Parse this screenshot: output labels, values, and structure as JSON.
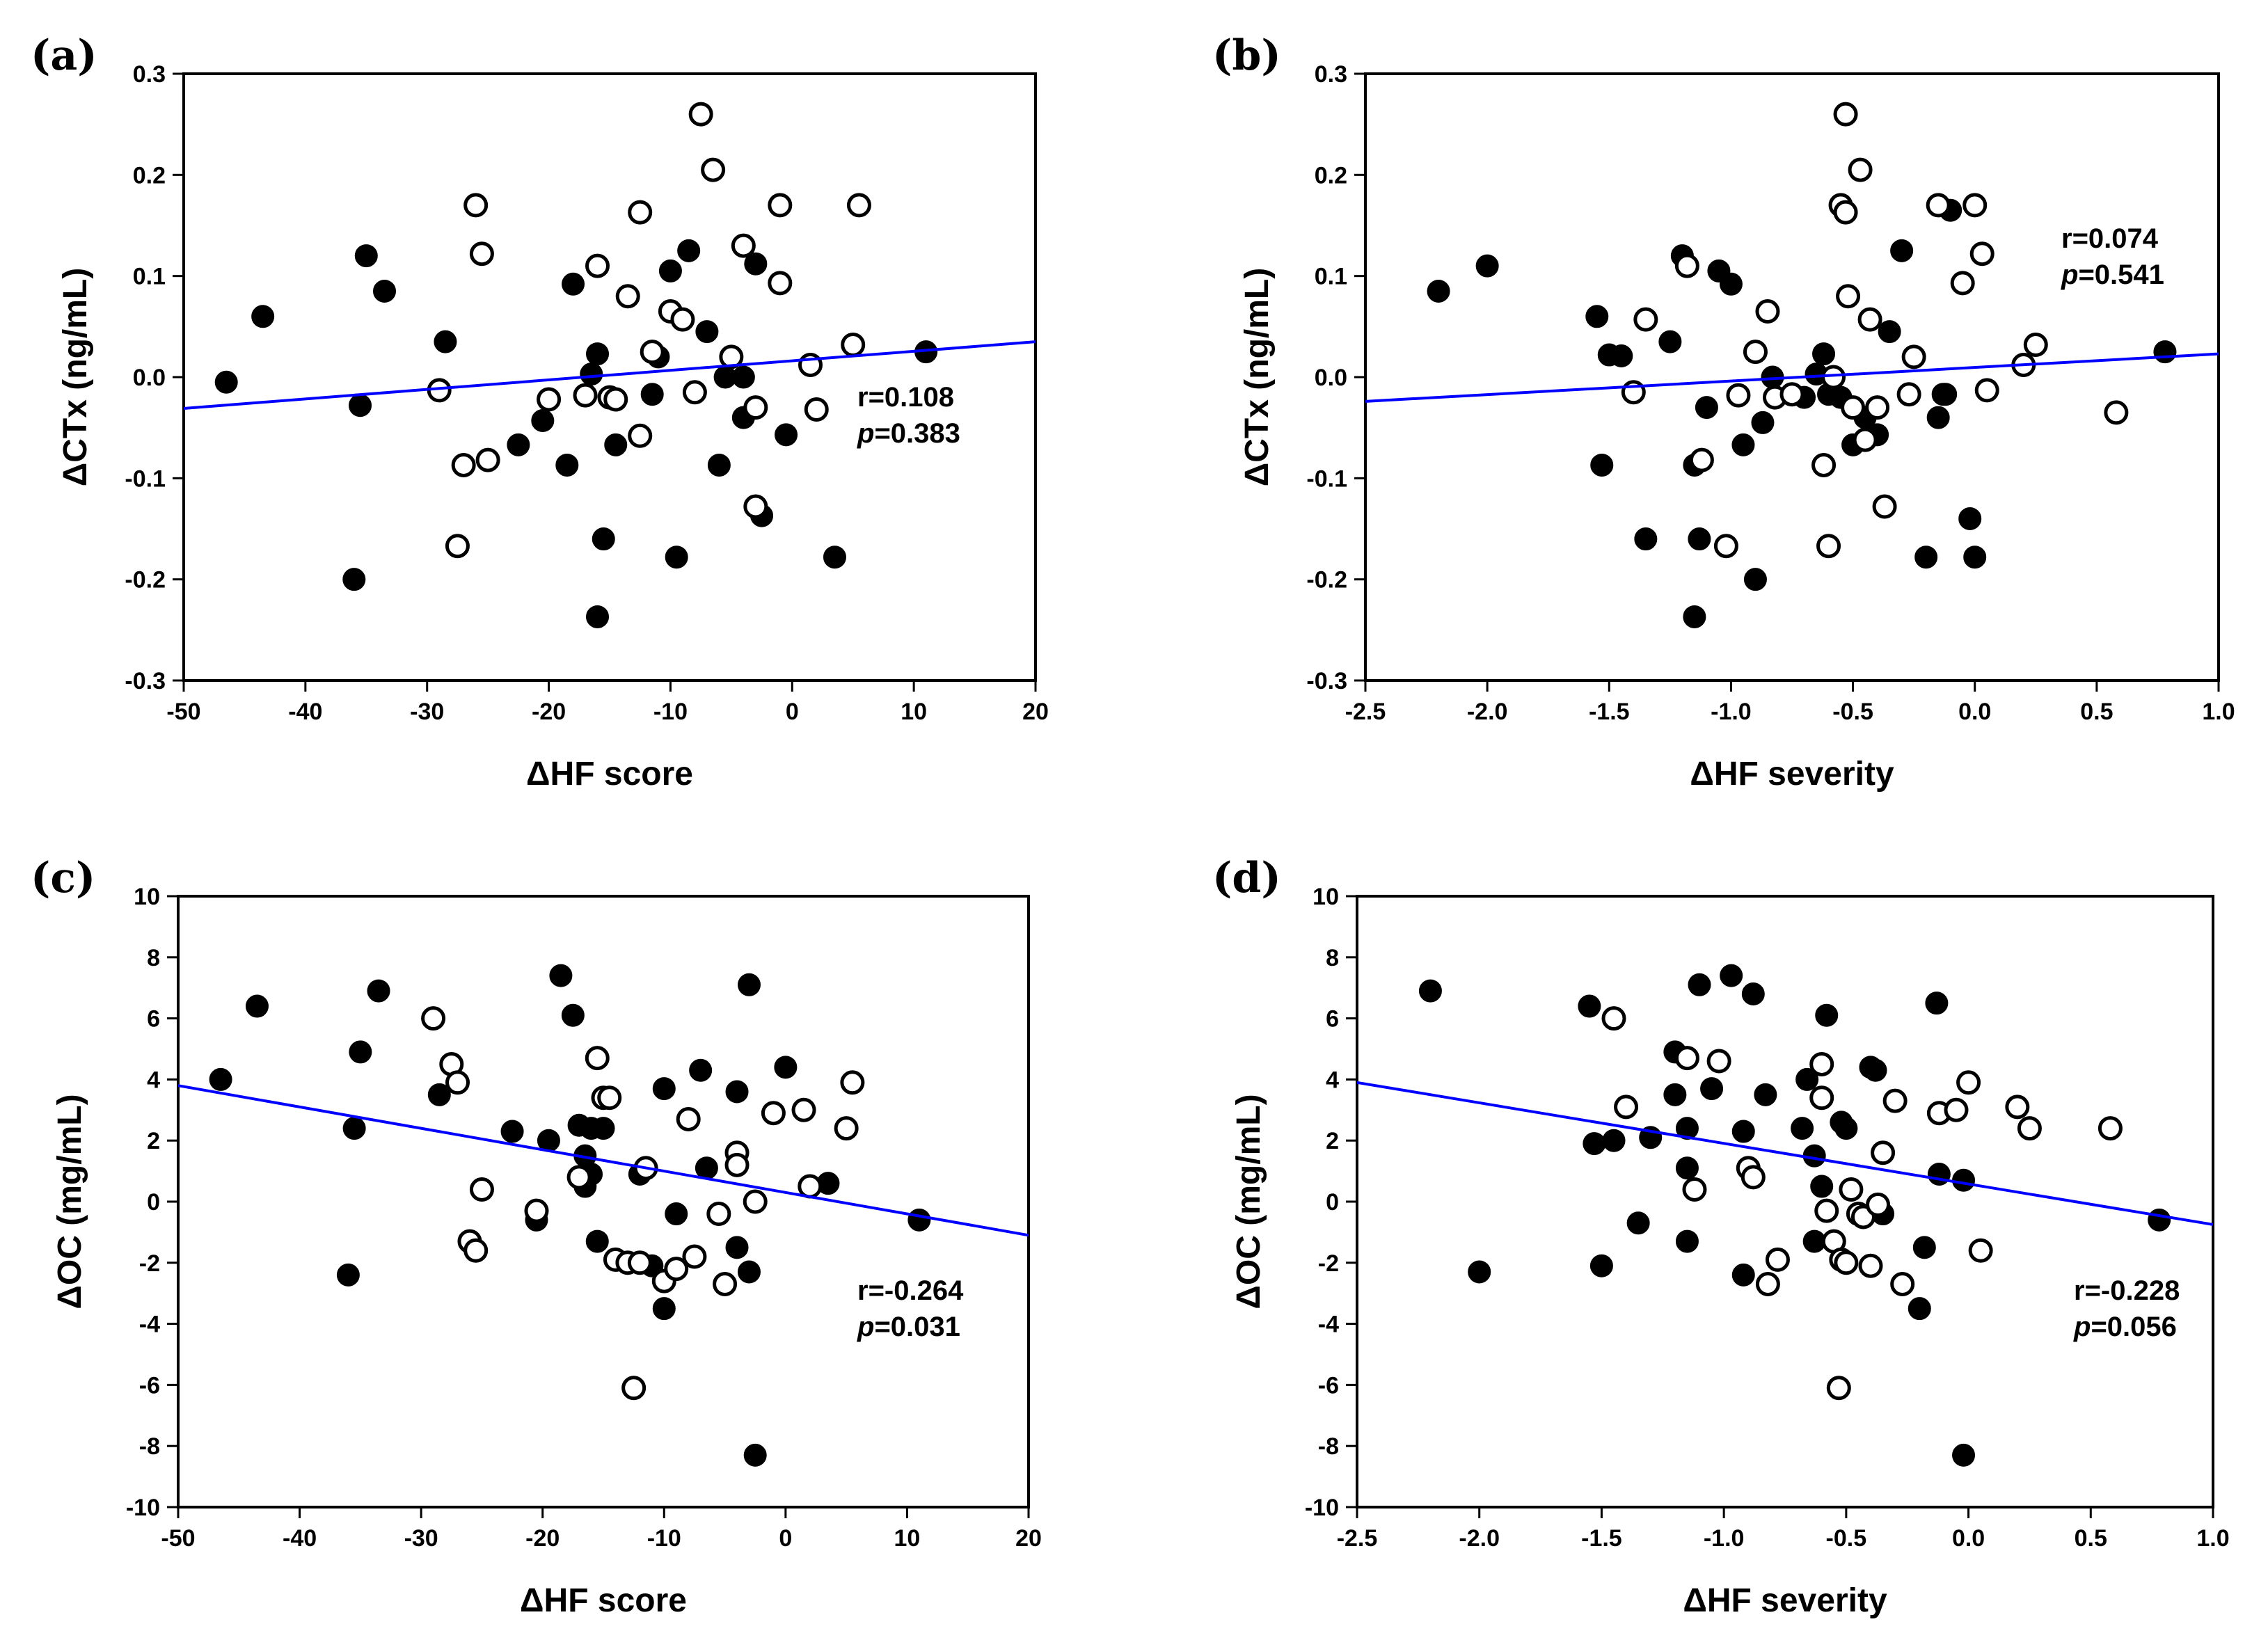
{
  "figure": {
    "colors": {
      "axis": "#000000",
      "regression": "#0000ff",
      "filled": "#000000",
      "open_fill": "#ffffff"
    },
    "marker_legend": {
      "filled": "filled-circle",
      "open": "open-circle"
    }
  },
  "chart_data": [
    {
      "id": "a",
      "panel_label": "(a)",
      "type": "scatter",
      "xlabel": "ΔHF score",
      "ylabel": "ΔCTx (ng/mL)",
      "xlim": [
        -50,
        20
      ],
      "ylim": [
        -0.3,
        0.3
      ],
      "xticks": [
        -50,
        -40,
        -30,
        -20,
        -10,
        0,
        10,
        20
      ],
      "xtick_labels": [
        "-50",
        "-40",
        "-30",
        "-20",
        "-10",
        "0",
        "10",
        "20"
      ],
      "yticks": [
        -0.3,
        -0.2,
        -0.1,
        0.0,
        0.1,
        0.2,
        0.3
      ],
      "ytick_labels": [
        "-0.3",
        "-0.2",
        "-0.1",
        "0.0",
        "0.1",
        "0.2",
        "0.3"
      ],
      "stats": {
        "r_label": "r=0.108",
        "p_prefix": "p",
        "p_value": "=0.383"
      },
      "regression": {
        "x": [
          -50,
          20
        ],
        "y": [
          -0.031,
          0.035
        ]
      },
      "series": [
        {
          "name": "filled",
          "x": [
            -46.5,
            -43.5,
            -36,
            -35.5,
            -35,
            -33.5,
            -28.5,
            -22.5,
            -20.5,
            -18.5,
            -18,
            -16,
            -16.5,
            -16,
            -15.5,
            -14.5,
            -11.5,
            -11,
            -10,
            -9.5,
            -8.5,
            -7,
            -6,
            -5.5,
            -4,
            -4,
            -3,
            -2.5,
            -0.5,
            3.5,
            11
          ],
          "y": [
            -0.005,
            0.06,
            -0.2,
            -0.028,
            0.12,
            0.085,
            0.035,
            -0.067,
            -0.043,
            -0.087,
            0.092,
            0.023,
            0.003,
            -0.237,
            -0.16,
            -0.067,
            -0.017,
            0.02,
            0.105,
            -0.178,
            0.125,
            0.045,
            -0.087,
            0.0,
            0.0,
            -0.04,
            0.112,
            -0.137,
            -0.057,
            -0.178,
            0.025
          ]
        },
        {
          "name": "open",
          "x": [
            -29,
            -27.5,
            -27,
            -26,
            -25.5,
            -25,
            -20,
            -17,
            -16,
            -15,
            -14.5,
            -13.5,
            -12.5,
            -12.5,
            -11.5,
            -10,
            -9,
            -8,
            -7.5,
            -6.5,
            -5,
            -4,
            -3,
            -3,
            -1,
            -1,
            1.5,
            2,
            5,
            5.5
          ],
          "y": [
            -0.013,
            -0.167,
            -0.087,
            0.17,
            0.122,
            -0.082,
            -0.022,
            -0.018,
            0.11,
            -0.02,
            -0.022,
            0.08,
            -0.058,
            0.163,
            0.025,
            0.065,
            0.057,
            -0.015,
            0.26,
            0.205,
            0.02,
            0.13,
            -0.128,
            -0.03,
            0.17,
            0.093,
            0.012,
            -0.032,
            0.032,
            0.17
          ]
        }
      ]
    },
    {
      "id": "b",
      "panel_label": "(b)",
      "type": "scatter",
      "xlabel": "ΔHF severity",
      "ylabel": "ΔCTx (ng/mL)",
      "xlim": [
        -2.5,
        1.0
      ],
      "ylim": [
        -0.3,
        0.3
      ],
      "xticks": [
        -2.5,
        -2.0,
        -1.5,
        -1.0,
        -0.5,
        0.0,
        0.5,
        1.0
      ],
      "xtick_labels": [
        "-2.5",
        "-2.0",
        "-1.5",
        "-1.0",
        "-0.5",
        "0.0",
        "0.5",
        "1.0"
      ],
      "yticks": [
        -0.3,
        -0.2,
        -0.1,
        0.0,
        0.1,
        0.2,
        0.3
      ],
      "ytick_labels": [
        "-0.3",
        "-0.2",
        "-0.1",
        "0.0",
        "0.1",
        "0.2",
        "0.3"
      ],
      "stats": {
        "r_label": "r=0.074",
        "p_prefix": "p",
        "p_value": "=0.541"
      },
      "regression": {
        "x": [
          -2.5,
          1.0
        ],
        "y": [
          -0.024,
          0.023
        ]
      },
      "series": [
        {
          "name": "filled",
          "x": [
            -2.2,
            -2.0,
            -1.55,
            -1.53,
            -1.5,
            -1.45,
            -1.35,
            -1.25,
            -1.2,
            -1.15,
            -1.15,
            -1.13,
            -1.1,
            -1.05,
            -1.0,
            -0.95,
            -0.9,
            -0.87,
            -0.83,
            -0.7,
            -0.65,
            -0.62,
            -0.6,
            -0.55,
            -0.5,
            -0.45,
            -0.4,
            -0.35,
            -0.3,
            -0.2,
            -0.15,
            -0.1,
            -0.13,
            -0.12,
            -0.02,
            0.0,
            0.78
          ],
          "y": [
            0.085,
            0.11,
            0.06,
            -0.087,
            0.022,
            0.021,
            -0.16,
            0.035,
            0.12,
            -0.087,
            -0.237,
            -0.16,
            -0.03,
            0.105,
            0.092,
            -0.067,
            -0.2,
            -0.045,
            0.0,
            -0.02,
            0.003,
            0.023,
            -0.017,
            -0.02,
            -0.067,
            -0.04,
            -0.057,
            0.045,
            0.125,
            -0.178,
            -0.04,
            0.165,
            -0.017,
            -0.017,
            -0.14,
            -0.178,
            0.025
          ]
        },
        {
          "name": "open",
          "x": [
            -1.4,
            -1.35,
            -1.18,
            -1.12,
            -1.02,
            -0.97,
            -0.9,
            -0.85,
            -0.82,
            -0.75,
            -0.62,
            -0.6,
            -0.58,
            -0.55,
            -0.53,
            -0.53,
            -0.52,
            -0.5,
            -0.47,
            -0.45,
            -0.43,
            -0.4,
            -0.37,
            -0.27,
            -0.25,
            -0.15,
            -0.05,
            0.0,
            0.03,
            0.05,
            0.2,
            0.25,
            0.58
          ],
          "y": [
            -0.015,
            0.057,
            0.11,
            -0.082,
            -0.167,
            -0.018,
            0.025,
            0.065,
            -0.02,
            -0.017,
            -0.087,
            -0.167,
            0.0,
            0.17,
            0.26,
            0.163,
            0.08,
            -0.03,
            0.205,
            -0.062,
            0.057,
            -0.03,
            -0.128,
            -0.017,
            0.02,
            0.17,
            0.093,
            0.17,
            0.122,
            -0.013,
            0.012,
            0.032,
            -0.035
          ]
        }
      ]
    },
    {
      "id": "c",
      "panel_label": "(c)",
      "type": "scatter",
      "xlabel": "ΔHF score",
      "ylabel": "ΔOC (mg/mL)",
      "xlim": [
        -50,
        20
      ],
      "ylim": [
        -10,
        10
      ],
      "xticks": [
        -50,
        -40,
        -30,
        -20,
        -10,
        0,
        10,
        20
      ],
      "xtick_labels": [
        "-50",
        "-40",
        "-30",
        "-20",
        "-10",
        "0",
        "10",
        "20"
      ],
      "yticks": [
        -10,
        -8,
        -6,
        -4,
        -2,
        0,
        2,
        4,
        6,
        8,
        10
      ],
      "ytick_labels": [
        "-10",
        "-8",
        "-6",
        "-4",
        "-2",
        "0",
        "2",
        "4",
        "6",
        "8",
        "10"
      ],
      "stats": {
        "r_label": "r=-0.264",
        "p_prefix": "p",
        "p_value": "=0.031"
      },
      "regression": {
        "x": [
          -50,
          20
        ],
        "y": [
          3.8,
          -1.1
        ]
      },
      "series": [
        {
          "name": "filled",
          "x": [
            -46.5,
            -43.5,
            -36,
            -35.5,
            -35,
            -33.5,
            -28.5,
            -22.5,
            -20.5,
            -19.5,
            -18.5,
            -17.5,
            -17,
            -16.5,
            -16.5,
            -16,
            -16,
            -15.5,
            -15,
            -12,
            -11,
            -10,
            -10,
            -9,
            -7,
            -6.5,
            -4,
            -4,
            -3,
            -3,
            -2.5,
            0,
            3.5,
            11
          ],
          "y": [
            4.0,
            6.4,
            -2.4,
            2.4,
            4.9,
            6.9,
            3.5,
            2.3,
            -0.6,
            2.0,
            7.4,
            6.1,
            2.5,
            1.5,
            0.5,
            0.9,
            2.4,
            -1.3,
            2.4,
            0.9,
            -2.1,
            -3.5,
            3.7,
            -0.4,
            4.3,
            1.1,
            3.6,
            -1.5,
            7.1,
            -2.3,
            -8.3,
            4.4,
            0.6,
            -0.6
          ]
        },
        {
          "name": "open",
          "x": [
            -29,
            -27.5,
            -27,
            -26,
            -25.5,
            -25,
            -20.5,
            -17,
            -15.5,
            -15,
            -14.5,
            -14,
            -13,
            -12,
            -12.5,
            -11.5,
            -10,
            -9,
            -8,
            -7.5,
            -5.5,
            -5,
            -4,
            -4,
            -2.5,
            -1,
            1.5,
            2,
            5,
            5.5
          ],
          "y": [
            6.0,
            4.5,
            3.9,
            -1.3,
            -1.6,
            0.4,
            -0.3,
            0.8,
            4.7,
            3.4,
            3.4,
            -1.9,
            -2.0,
            -2.0,
            -6.1,
            1.1,
            -2.6,
            -2.2,
            2.7,
            -1.8,
            -0.4,
            -2.7,
            1.6,
            1.2,
            0.0,
            2.9,
            3.0,
            0.5,
            2.4,
            3.9
          ]
        }
      ]
    },
    {
      "id": "d",
      "panel_label": "(d)",
      "type": "scatter",
      "xlabel": "ΔHF severity",
      "ylabel": "ΔOC (mg/mL)",
      "xlim": [
        -2.5,
        1.0
      ],
      "ylim": [
        -10,
        10
      ],
      "xticks": [
        -2.5,
        -2.0,
        -1.5,
        -1.0,
        -0.5,
        0.0,
        0.5,
        1.0
      ],
      "xtick_labels": [
        "-2.5",
        "-2.0",
        "-1.5",
        "-1.0",
        "-0.5",
        "0.0",
        "0.5",
        "1.0"
      ],
      "yticks": [
        -10,
        -8,
        -6,
        -4,
        -2,
        0,
        2,
        4,
        6,
        8,
        10
      ],
      "ytick_labels": [
        "-10",
        "-8",
        "-6",
        "-4",
        "-2",
        "0",
        "2",
        "4",
        "6",
        "8",
        "10"
      ],
      "stats": {
        "r_label": "r=-0.228",
        "p_prefix": "p",
        "p_value": "=0.056"
      },
      "regression": {
        "x": [
          -2.5,
          1.0
        ],
        "y": [
          3.9,
          -0.75
        ]
      },
      "series": [
        {
          "name": "filled",
          "x": [
            -2.2,
            -2.0,
            -1.55,
            -1.53,
            -1.5,
            -1.45,
            -1.35,
            -1.3,
            -1.2,
            -1.2,
            -1.15,
            -1.15,
            -1.15,
            -1.1,
            -1.05,
            -0.97,
            -0.92,
            -0.92,
            -0.88,
            -0.83,
            -0.68,
            -0.66,
            -0.63,
            -0.63,
            -0.6,
            -0.58,
            -0.52,
            -0.5,
            -0.4,
            -0.38,
            -0.35,
            -0.2,
            -0.18,
            -0.13,
            -0.12,
            -0.02,
            -0.02,
            0.78
          ],
          "y": [
            6.9,
            -2.3,
            6.4,
            1.9,
            -2.1,
            2.0,
            -0.7,
            2.1,
            4.9,
            3.5,
            1.1,
            2.4,
            -1.3,
            7.1,
            3.7,
            7.4,
            2.3,
            -2.4,
            6.8,
            3.5,
            2.4,
            4.0,
            1.5,
            -1.3,
            0.5,
            6.1,
            2.6,
            2.4,
            4.4,
            4.3,
            -0.4,
            -3.5,
            -1.5,
            6.5,
            0.9,
            -8.3,
            0.7,
            -0.6
          ]
        },
        {
          "name": "open",
          "x": [
            -1.45,
            -1.4,
            -1.15,
            -1.12,
            -1.02,
            -0.9,
            -0.88,
            -0.82,
            -0.78,
            -0.6,
            -0.6,
            -0.58,
            -0.55,
            -0.53,
            -0.52,
            -0.5,
            -0.48,
            -0.45,
            -0.43,
            -0.4,
            -0.37,
            -0.35,
            -0.3,
            -0.27,
            -0.12,
            -0.05,
            0.0,
            0.05,
            0.2,
            0.25,
            0.58
          ],
          "y": [
            6.0,
            3.1,
            4.7,
            0.4,
            4.6,
            1.1,
            0.8,
            -2.7,
            -1.9,
            4.5,
            3.4,
            -0.3,
            -1.3,
            -6.1,
            -1.9,
            -2.0,
            0.4,
            -0.4,
            -0.5,
            -2.1,
            -0.1,
            1.6,
            3.3,
            -2.7,
            2.9,
            3.0,
            3.9,
            -1.6,
            3.1,
            2.4,
            2.4
          ]
        }
      ]
    }
  ]
}
